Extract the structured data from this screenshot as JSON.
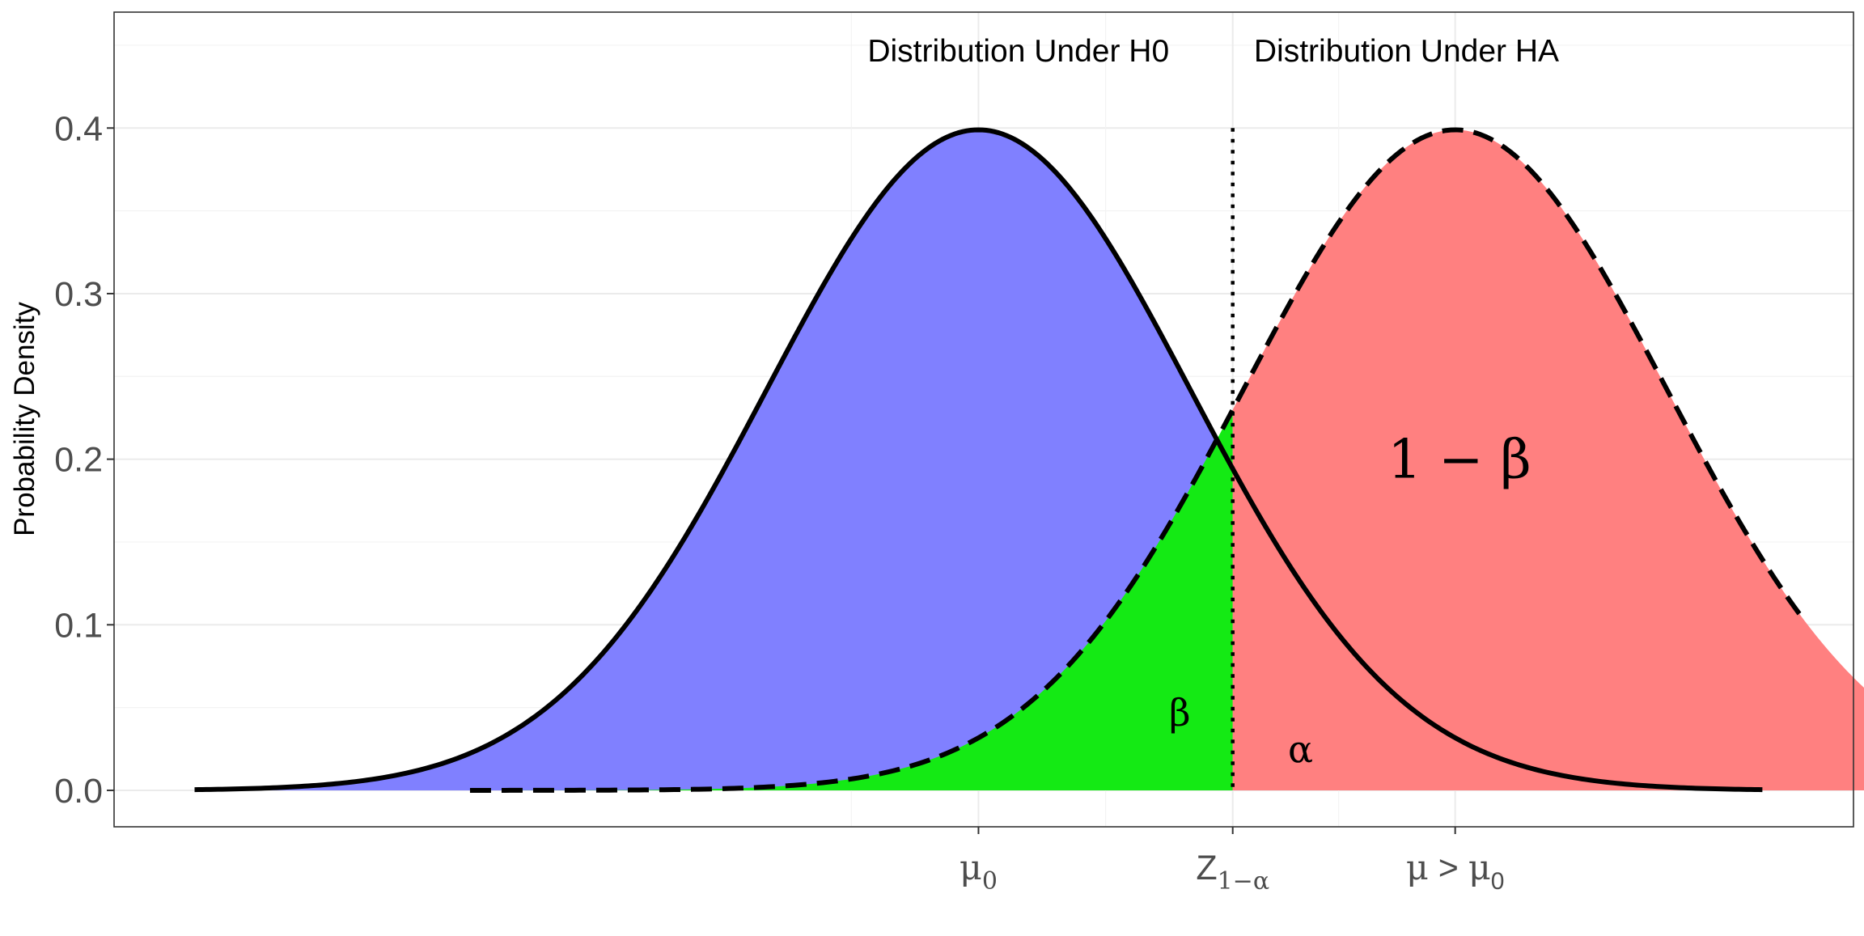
{
  "chart_data": {
    "type": "area",
    "ylabel": "Probability Density",
    "xlabel": "",
    "ylim": [
      -0.022,
      0.47
    ],
    "xlim": [
      -4.08,
      4.13
    ],
    "grid": true,
    "y_ticks": [
      {
        "value": 0.0,
        "label": "0.0"
      },
      {
        "value": 0.1,
        "label": "0.1"
      },
      {
        "value": 0.2,
        "label": "0.2"
      },
      {
        "value": 0.3,
        "label": "0.3"
      },
      {
        "value": 0.4,
        "label": "0.4"
      }
    ],
    "x_ticks": [
      {
        "value": 0.0,
        "main": "μ",
        "sub": "0",
        "sep": "",
        "tail": "",
        "tail_sub": ""
      },
      {
        "value": 1.2,
        "main": "Z",
        "sub": "1−α",
        "sep": "",
        "tail": "",
        "tail_sub": ""
      },
      {
        "value": 2.25,
        "main": "μ",
        "sub": "",
        "sep": " > ",
        "tail": "μ",
        "tail_sub": "0"
      }
    ],
    "x_minor_grid": [
      -0.6,
      0.6,
      1.7
    ],
    "curves": {
      "null": {
        "mean": 0.0,
        "sd": 1.0,
        "x_range": [
          -3.7,
          3.7
        ],
        "line": "solid"
      },
      "alt": {
        "mean": 2.25,
        "sd": 1.0,
        "x_range": [
          -2.4,
          7.0
        ],
        "line": "dashed"
      }
    },
    "critical_value": 1.2,
    "critical_line_style": "dotted",
    "regions": [
      {
        "name": "H0 density",
        "curve": "null",
        "from": -3.7,
        "to": 1.2,
        "color": "#8080ff"
      },
      {
        "name": "alpha",
        "curve": "null",
        "from": 1.2,
        "to": 3.7,
        "color": "#f7991c"
      },
      {
        "name": "beta",
        "curve": "alt",
        "from": -2.4,
        "to": 1.2,
        "color": "#14ea14"
      },
      {
        "name": "power",
        "curve": "alt",
        "from": 1.2,
        "to": 7.0,
        "color": "#ff8080"
      }
    ],
    "top_labels": [
      {
        "text": "Distribution Under H0",
        "anchor": "end",
        "x": 0.9
      },
      {
        "text": "Distribution Under HA",
        "anchor": "start",
        "x": 1.3
      }
    ],
    "region_labels": [
      {
        "text": "1 − β",
        "x": 2.27,
        "y": 0.2,
        "size": "large"
      },
      {
        "text": "β",
        "x": 0.95,
        "y": 0.047,
        "size": "medium"
      },
      {
        "text": "α",
        "x": 1.52,
        "y": 0.025,
        "size": "medium"
      }
    ]
  }
}
